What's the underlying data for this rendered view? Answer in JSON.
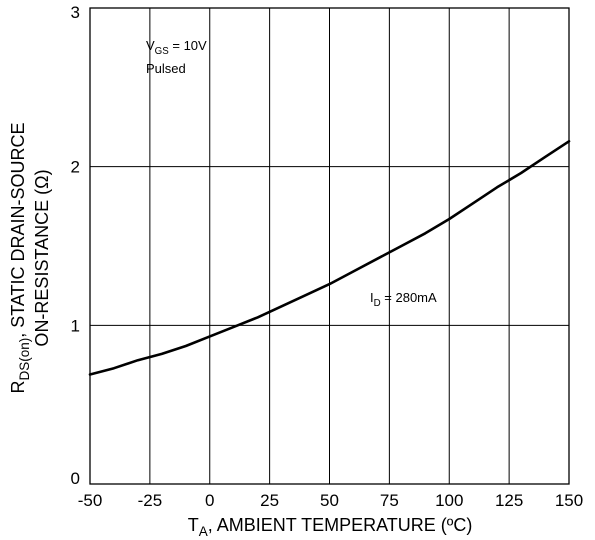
{
  "chart_data": {
    "type": "line",
    "title": "",
    "xlabel": {
      "main": "T",
      "sub": "A",
      "rest": ", AMBIENT TEMPERATURE (ºC)"
    },
    "ylabel": {
      "line1_main": "R",
      "line1_sub": "DS(on)",
      "line1_rest": ", STATIC DRAIN-SOURCE",
      "line2": "ON-RESISTANCE (Ω)"
    },
    "xlim": [
      -50,
      150
    ],
    "ylim": [
      0,
      3
    ],
    "x_ticks": [
      -50,
      -25,
      0,
      25,
      50,
      75,
      100,
      125,
      150
    ],
    "x_tick_labels": [
      "-50",
      "-25",
      "0",
      "25",
      "50",
      "75",
      "100",
      "125",
      "150"
    ],
    "y_ticks": [
      0,
      1,
      2,
      3
    ],
    "y_tick_labels": [
      "0",
      "1",
      "2",
      "3"
    ],
    "grid": true,
    "series": [
      {
        "name": "",
        "x": [
          -50,
          -40,
          -30,
          -20,
          -10,
          0,
          10,
          20,
          30,
          40,
          50,
          60,
          70,
          80,
          90,
          100,
          110,
          120,
          130,
          140,
          150
        ],
        "y": [
          0.69,
          0.73,
          0.78,
          0.82,
          0.87,
          0.93,
          0.99,
          1.05,
          1.12,
          1.19,
          1.26,
          1.34,
          1.42,
          1.5,
          1.58,
          1.67,
          1.77,
          1.87,
          1.96,
          2.06,
          2.16
        ]
      }
    ],
    "annotations": [
      {
        "id": "vgs",
        "main": "V",
        "sub": "GS",
        "rest": " = 10V",
        "line2": "Pulsed"
      },
      {
        "id": "id",
        "main": "I",
        "sub": "D",
        "rest": " = 280mA"
      }
    ],
    "colors": {
      "line": "#000000",
      "grid": "#000000",
      "background": "#ffffff"
    }
  }
}
